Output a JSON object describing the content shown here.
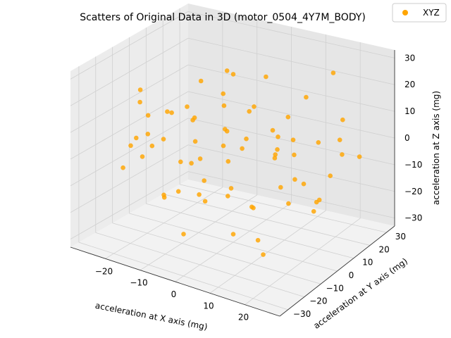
{
  "chart_data": {
    "type": "scatter",
    "title": "Scatters of Original Data in 3D (motor_0504_4Y7M_BODY)",
    "xlabel": "acceleration at X axis (mg)",
    "ylabel": "acceleration at Y axis (mg)",
    "zlabel": "acceleration at Z axis (mg)",
    "xlim": [
      -30,
      30
    ],
    "ylim": [
      -35,
      35
    ],
    "zlim": [
      -33,
      33
    ],
    "x_ticks": [
      -20,
      -10,
      0,
      10,
      20
    ],
    "y_ticks": [
      -30,
      -20,
      -10,
      0,
      10,
      20,
      30
    ],
    "z_ticks": [
      -30,
      -20,
      -10,
      0,
      10,
      20,
      30
    ],
    "grid": true,
    "legend_placement": "top-right",
    "series": [
      {
        "name": "XYZ",
        "color": "#ffa500",
        "points": [
          [
            -27,
            5,
            3
          ],
          [
            -25,
            -4,
            12
          ],
          [
            -24,
            8,
            -6
          ],
          [
            -22,
            -10,
            20
          ],
          [
            -21,
            12,
            -15
          ],
          [
            -20,
            2,
            8
          ],
          [
            -19,
            -15,
            -2
          ],
          [
            -18,
            18,
            14
          ],
          [
            -17,
            -6,
            -20
          ],
          [
            -16,
            10,
            4
          ],
          [
            -15,
            -20,
            10
          ],
          [
            -14,
            4,
            -10
          ],
          [
            -13,
            22,
            -4
          ],
          [
            -12,
            -12,
            16
          ],
          [
            -11,
            6,
            -24
          ],
          [
            -10,
            -2,
            2
          ],
          [
            -9,
            15,
            22
          ],
          [
            -8,
            -25,
            -8
          ],
          [
            -7,
            9,
            12
          ],
          [
            -6,
            -8,
            -14
          ],
          [
            -5,
            20,
            6
          ],
          [
            -4,
            -16,
            18
          ],
          [
            -3,
            3,
            -18
          ],
          [
            -2,
            12,
            0
          ],
          [
            -1,
            -4,
            24
          ],
          [
            0,
            25,
            -12
          ],
          [
            1,
            -22,
            8
          ],
          [
            2,
            7,
            -22
          ],
          [
            3,
            -10,
            14
          ],
          [
            4,
            17,
            -6
          ],
          [
            5,
            -28,
            4
          ],
          [
            6,
            0,
            20
          ],
          [
            7,
            14,
            -16
          ],
          [
            8,
            -18,
            -2
          ],
          [
            9,
            5,
            10
          ],
          [
            10,
            -6,
            -26
          ],
          [
            11,
            21,
            16
          ],
          [
            12,
            -13,
            -10
          ],
          [
            13,
            9,
            6
          ],
          [
            14,
            -24,
            18
          ],
          [
            15,
            2,
            -14
          ],
          [
            16,
            18,
            2
          ],
          [
            17,
            -9,
            12
          ],
          [
            18,
            11,
            -20
          ],
          [
            19,
            -3,
            8
          ],
          [
            20,
            24,
            -4
          ],
          [
            21,
            -17,
            22
          ],
          [
            22,
            6,
            -12
          ],
          [
            23,
            -11,
            4
          ],
          [
            24,
            16,
            14
          ],
          [
            25,
            -2,
            -8
          ],
          [
            26,
            10,
            10
          ],
          [
            -26,
            -12,
            -10
          ],
          [
            -23,
            20,
            2
          ],
          [
            -18,
            -24,
            6
          ],
          [
            -14,
            26,
            -18
          ],
          [
            -9,
            -30,
            12
          ],
          [
            -4,
            28,
            16
          ],
          [
            1,
            -32,
            -16
          ],
          [
            6,
            30,
            -22
          ],
          [
            11,
            -29,
            20
          ],
          [
            16,
            27,
            24
          ],
          [
            21,
            -26,
            -18
          ],
          [
            26,
            22,
            -2
          ],
          [
            -28,
            0,
            -4
          ],
          [
            28,
            0,
            2
          ],
          [
            0,
            0,
            30
          ],
          [
            0,
            0,
            -30
          ],
          [
            0,
            33,
            0
          ],
          [
            0,
            -33,
            0
          ]
        ]
      }
    ]
  }
}
